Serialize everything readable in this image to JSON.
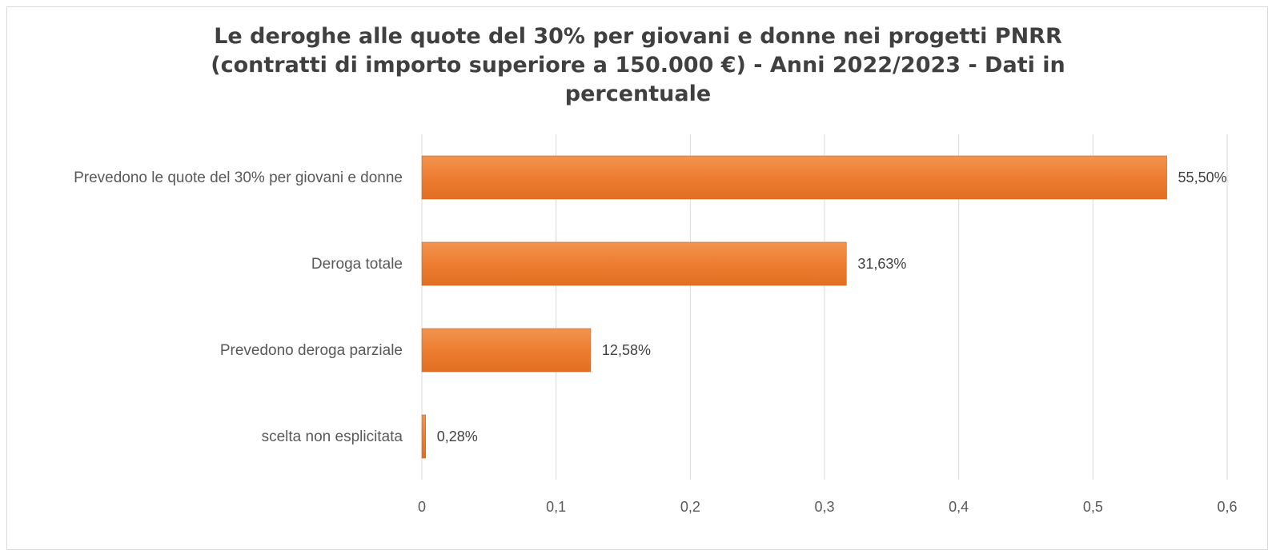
{
  "chart_data": {
    "type": "bar",
    "orientation": "horizontal",
    "title_lines": [
      "Le deroghe alle quote del 30% per giovani e donne nei progetti PNRR",
      "(contratti di importo superiore a 150.000 €) - Anni 2022/2023 - Dati in",
      "percentuale"
    ],
    "categories": [
      "Prevedono le quote del 30% per giovani e donne",
      "Deroga totale",
      "Prevedono deroga parziale",
      "scelta non esplicitata"
    ],
    "values": [
      0.555,
      0.3163,
      0.1258,
      0.0028
    ],
    "data_labels": [
      "55,50%",
      "31,63%",
      "12,58%",
      "0,28%"
    ],
    "xlim": [
      0,
      0.6
    ],
    "x_ticks": [
      0,
      0.1,
      0.2,
      0.3,
      0.4,
      0.5,
      0.6
    ],
    "x_tick_labels": [
      "0",
      "0,1",
      "0,2",
      "0,3",
      "0,4",
      "0,5",
      "0,6"
    ],
    "grid": "vertical",
    "legend": "none",
    "bar_color": "#ED7D31",
    "grid_color": "#d9d9d9",
    "text_color": "#595959"
  }
}
